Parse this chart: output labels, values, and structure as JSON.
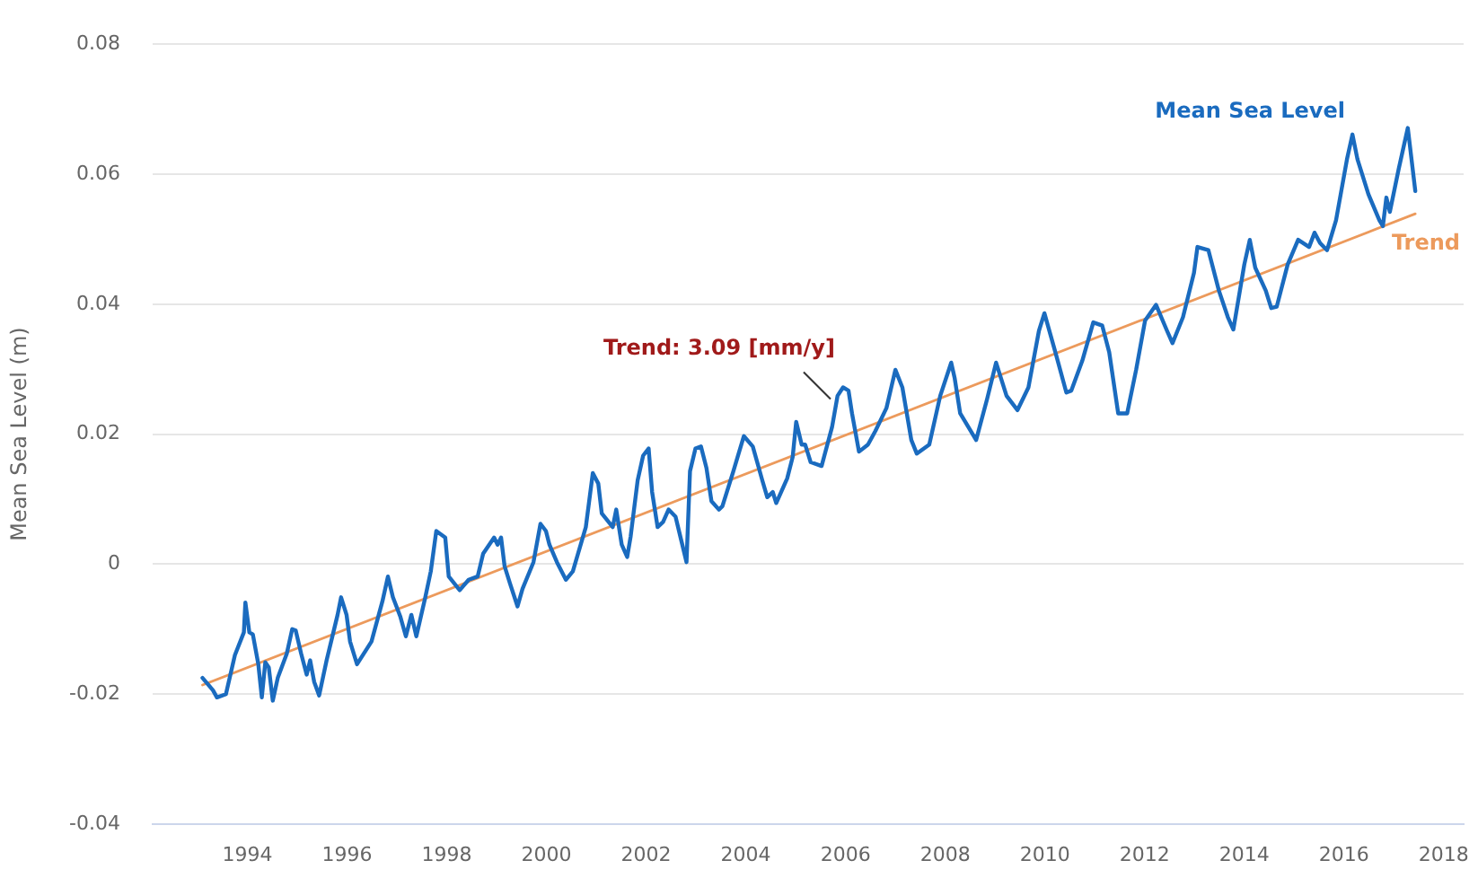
{
  "chart_data": {
    "type": "line",
    "ylabel": "Mean Sea Level (m)",
    "xlim": [
      1992.1,
      2018.4
    ],
    "xticks": [
      1994,
      1996,
      1998,
      2000,
      2002,
      2004,
      2006,
      2008,
      2010,
      2012,
      2014,
      2016,
      2018
    ],
    "ylim": [
      -0.04,
      0.08
    ],
    "yticks": [
      -0.04,
      -0.02,
      0,
      0.02,
      0.04,
      0.06,
      0.08
    ],
    "grid": "y",
    "legend": false,
    "marker": "none",
    "line_style": "solid",
    "series": [
      {
        "name": "Mean Sea Level",
        "color": "#1a6bbf",
        "x": [
          1993.1,
          1993.31,
          1993.39,
          1993.57,
          1993.75,
          1993.93,
          1993.96,
          1994.04,
          1994.11,
          1994.22,
          1994.29,
          1994.36,
          1994.43,
          1994.51,
          1994.61,
          1994.79,
          1994.9,
          1994.97,
          1995.08,
          1995.19,
          1995.26,
          1995.34,
          1995.44,
          1995.59,
          1995.81,
          1995.88,
          1995.99,
          1996.06,
          1996.2,
          1996.49,
          1996.71,
          1996.82,
          1996.92,
          1997.07,
          1997.18,
          1997.29,
          1997.39,
          1997.57,
          1997.68,
          1997.79,
          1997.97,
          1998.04,
          1998.26,
          1998.44,
          1998.62,
          1998.73,
          1998.95,
          1999.02,
          1999.09,
          1999.16,
          1999.27,
          1999.42,
          1999.52,
          1999.74,
          1999.88,
          1999.99,
          2000.06,
          2000.21,
          2000.39,
          2000.53,
          2000.79,
          2000.93,
          2001.04,
          2001.11,
          2001.33,
          2001.4,
          2001.51,
          2001.62,
          2001.69,
          2001.83,
          2001.94,
          2002.05,
          2002.12,
          2002.23,
          2002.34,
          2002.45,
          2002.59,
          2002.7,
          2002.81,
          2002.88,
          2002.99,
          2003.1,
          2003.21,
          2003.31,
          2003.46,
          2003.53,
          2003.75,
          2003.96,
          2004.14,
          2004.33,
          2004.43,
          2004.54,
          2004.61,
          2004.83,
          2004.94,
          2005.01,
          2005.12,
          2005.19,
          2005.3,
          2005.52,
          2005.73,
          2005.84,
          2005.95,
          2006.06,
          2006.13,
          2006.27,
          2006.45,
          2006.6,
          2006.82,
          2007.0,
          2007.14,
          2007.32,
          2007.43,
          2007.68,
          2007.9,
          2008.12,
          2008.19,
          2008.3,
          2008.51,
          2008.62,
          2008.84,
          2009.02,
          2009.23,
          2009.45,
          2009.67,
          2009.88,
          2009.99,
          2010.21,
          2010.43,
          2010.53,
          2010.75,
          2010.97,
          2011.15,
          2011.29,
          2011.47,
          2011.65,
          2011.83,
          2012.01,
          2012.23,
          2012.45,
          2012.56,
          2012.77,
          2012.99,
          2013.06,
          2013.28,
          2013.49,
          2013.67,
          2013.78,
          2014.0,
          2014.11,
          2014.22,
          2014.43,
          2014.54,
          2014.65,
          2014.87,
          2015.08,
          2015.3,
          2015.41,
          2015.52,
          2015.66,
          2015.84,
          2016.06,
          2016.17,
          2016.27,
          2016.49,
          2016.71,
          2016.78,
          2016.85,
          2016.92,
          2017.1,
          2017.28,
          2017.43
        ],
        "values": [
          -0.0175,
          -0.0194,
          -0.0205,
          -0.02,
          -0.014,
          -0.0105,
          -0.0059,
          -0.0105,
          -0.0108,
          -0.0154,
          -0.0205,
          -0.0151,
          -0.0159,
          -0.021,
          -0.0175,
          -0.0138,
          -0.01,
          -0.0102,
          -0.0138,
          -0.017,
          -0.0148,
          -0.0181,
          -0.0202,
          -0.0148,
          -0.0078,
          -0.0051,
          -0.0078,
          -0.0119,
          -0.0154,
          -0.0119,
          -0.0057,
          -0.0019,
          -0.0051,
          -0.0081,
          -0.0111,
          -0.0078,
          -0.0111,
          -0.0051,
          -0.0011,
          0.0051,
          0.0041,
          -0.0019,
          -0.004,
          -0.0024,
          -0.0019,
          0.0016,
          0.0041,
          0.003,
          0.0041,
          -0.0003,
          -0.003,
          -0.0065,
          -0.0038,
          0.0003,
          0.0062,
          0.0051,
          0.003,
          0.0003,
          -0.0024,
          -0.0011,
          0.0057,
          0.014,
          0.0124,
          0.0078,
          0.0057,
          0.0084,
          0.003,
          0.0011,
          0.0043,
          0.0129,
          0.0167,
          0.0178,
          0.0111,
          0.0057,
          0.0065,
          0.0084,
          0.0073,
          0.0038,
          0.0003,
          0.0143,
          0.0178,
          0.0181,
          0.0148,
          0.0097,
          0.0084,
          0.0089,
          0.0143,
          0.0197,
          0.0181,
          0.0129,
          0.0103,
          0.0111,
          0.0094,
          0.0132,
          0.0165,
          0.0219,
          0.0184,
          0.0184,
          0.0157,
          0.0151,
          0.0211,
          0.0259,
          0.0272,
          0.0267,
          0.0232,
          0.0173,
          0.0184,
          0.0205,
          0.024,
          0.0299,
          0.0272,
          0.0191,
          0.017,
          0.0184,
          0.0259,
          0.031,
          0.0286,
          0.0232,
          0.0205,
          0.0191,
          0.0254,
          0.031,
          0.0259,
          0.0237,
          0.0272,
          0.0359,
          0.0386,
          0.0326,
          0.0264,
          0.0267,
          0.0313,
          0.0372,
          0.0367,
          0.0326,
          0.0232,
          0.0232,
          0.0299,
          0.0375,
          0.0399,
          0.0359,
          0.034,
          0.038,
          0.0448,
          0.0488,
          0.0483,
          0.0421,
          0.038,
          0.0361,
          0.0461,
          0.0499,
          0.0456,
          0.0421,
          0.0394,
          0.0396,
          0.0461,
          0.0499,
          0.0488,
          0.051,
          0.0494,
          0.0483,
          0.0529,
          0.0623,
          0.0661,
          0.0623,
          0.0569,
          0.0529,
          0.052,
          0.0564,
          0.0542,
          0.0609,
          0.0671,
          0.0574
        ]
      },
      {
        "name": "Trend",
        "color": "#ec9a5c",
        "x": [
          1993.1,
          2017.43
        ],
        "values": [
          -0.0186,
          0.0539
        ]
      }
    ],
    "annotations": [
      {
        "text": "Trend: 3.09 [mm/y]",
        "x": 2005.7,
        "y": 0.0254
      }
    ]
  }
}
